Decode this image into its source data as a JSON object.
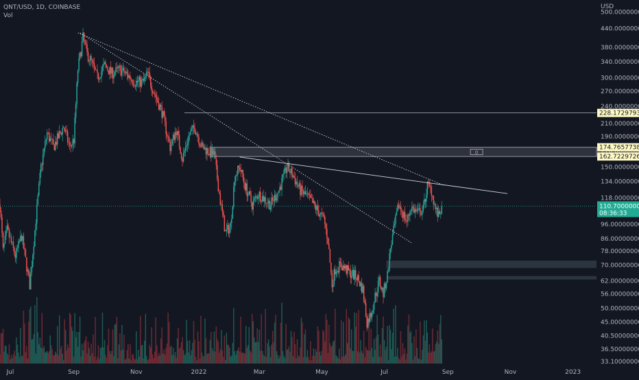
{
  "header": {
    "symbol_line": "QNT/USD, 1D, COINBASE",
    "volume_label": "Vol",
    "unit": "USD"
  },
  "chart_data": {
    "type": "candlestick",
    "symbol": "QNT/USD",
    "interval": "1D",
    "exchange": "COINBASE",
    "y_scale": "log",
    "ylim": [
      32.6,
      520
    ],
    "y_ticks": [
      "500.00000000",
      "440.00000000",
      "380.00000000",
      "340.00000000",
      "300.00000000",
      "270.00000000",
      "240.00000000",
      "210.00000000",
      "190.00000000",
      "170.00000000",
      "150.00000000",
      "134.00000000",
      "118.00000000",
      "106.00000000",
      "96.00000000",
      "86.00000000",
      "78.00000000",
      "70.00000000",
      "62.00000000",
      "56.00000000",
      "50.00000000",
      "45.00000000",
      "40.50000000",
      "36.50000000",
      "33.10000000"
    ],
    "x_ticks": [
      "Jul",
      "Sep",
      "Nov",
      "2022",
      "Mar",
      "May",
      "Jul",
      "Sep",
      "Nov",
      "2023"
    ],
    "x_tick_dates": [
      "2021-07-01",
      "2021-09-01",
      "2021-11-01",
      "2022-01-01",
      "2022-03-01",
      "2022-05-01",
      "2022-07-01",
      "2022-09-01",
      "2022-11-01",
      "2023-01-01"
    ],
    "x_range": [
      "2021-06-21",
      "2023-01-24"
    ],
    "last_date": "2022-08-26",
    "anchors": [
      {
        "date": "2021-06-21",
        "price": 112
      },
      {
        "date": "2021-06-24",
        "price": 78
      },
      {
        "date": "2021-06-28",
        "price": 92
      },
      {
        "date": "2021-07-06",
        "price": 75
      },
      {
        "date": "2021-07-12",
        "price": 88
      },
      {
        "date": "2021-07-20",
        "price": 60
      },
      {
        "date": "2021-07-26",
        "price": 100
      },
      {
        "date": "2021-07-31",
        "price": 150
      },
      {
        "date": "2021-08-06",
        "price": 195
      },
      {
        "date": "2021-08-12",
        "price": 175
      },
      {
        "date": "2021-08-22",
        "price": 205
      },
      {
        "date": "2021-08-28",
        "price": 175
      },
      {
        "date": "2021-09-01",
        "price": 185
      },
      {
        "date": "2021-09-05",
        "price": 320
      },
      {
        "date": "2021-09-10",
        "price": 410
      },
      {
        "date": "2021-09-14",
        "price": 360
      },
      {
        "date": "2021-09-18",
        "price": 340
      },
      {
        "date": "2021-09-24",
        "price": 300
      },
      {
        "date": "2021-10-01",
        "price": 330
      },
      {
        "date": "2021-10-08",
        "price": 310
      },
      {
        "date": "2021-10-16",
        "price": 320
      },
      {
        "date": "2021-10-24",
        "price": 305
      },
      {
        "date": "2021-10-31",
        "price": 290
      },
      {
        "date": "2021-11-08",
        "price": 290
      },
      {
        "date": "2021-11-12",
        "price": 310
      },
      {
        "date": "2021-11-18",
        "price": 270
      },
      {
        "date": "2021-11-26",
        "price": 230
      },
      {
        "date": "2021-12-04",
        "price": 175
      },
      {
        "date": "2021-12-10",
        "price": 200
      },
      {
        "date": "2021-12-16",
        "price": 160
      },
      {
        "date": "2021-12-22",
        "price": 190
      },
      {
        "date": "2021-12-28",
        "price": 205
      },
      {
        "date": "2022-01-04",
        "price": 175
      },
      {
        "date": "2022-01-10",
        "price": 170
      },
      {
        "date": "2022-01-16",
        "price": 165
      },
      {
        "date": "2022-01-22",
        "price": 115
      },
      {
        "date": "2022-01-27",
        "price": 90
      },
      {
        "date": "2022-02-01",
        "price": 95
      },
      {
        "date": "2022-02-05",
        "price": 140
      },
      {
        "date": "2022-02-10",
        "price": 150
      },
      {
        "date": "2022-02-15",
        "price": 130
      },
      {
        "date": "2022-02-22",
        "price": 112
      },
      {
        "date": "2022-02-28",
        "price": 122
      },
      {
        "date": "2022-03-05",
        "price": 118
      },
      {
        "date": "2022-03-12",
        "price": 112
      },
      {
        "date": "2022-03-20",
        "price": 125
      },
      {
        "date": "2022-03-28",
        "price": 150
      },
      {
        "date": "2022-04-03",
        "price": 140
      },
      {
        "date": "2022-04-10",
        "price": 125
      },
      {
        "date": "2022-04-18",
        "price": 118
      },
      {
        "date": "2022-04-26",
        "price": 108
      },
      {
        "date": "2022-05-03",
        "price": 100
      },
      {
        "date": "2022-05-07",
        "price": 85
      },
      {
        "date": "2022-05-11",
        "price": 60
      },
      {
        "date": "2022-05-14",
        "price": 68
      },
      {
        "date": "2022-05-20",
        "price": 70
      },
      {
        "date": "2022-05-28",
        "price": 66
      },
      {
        "date": "2022-06-04",
        "price": 64
      },
      {
        "date": "2022-06-10",
        "price": 58
      },
      {
        "date": "2022-06-14",
        "price": 45
      },
      {
        "date": "2022-06-18",
        "price": 48
      },
      {
        "date": "2022-06-22",
        "price": 55
      },
      {
        "date": "2022-06-26",
        "price": 62
      },
      {
        "date": "2022-06-30",
        "price": 56
      },
      {
        "date": "2022-07-04",
        "price": 65
      },
      {
        "date": "2022-07-07",
        "price": 80
      },
      {
        "date": "2022-07-11",
        "price": 95
      },
      {
        "date": "2022-07-15",
        "price": 112
      },
      {
        "date": "2022-07-19",
        "price": 105
      },
      {
        "date": "2022-07-23",
        "price": 98
      },
      {
        "date": "2022-07-27",
        "price": 110
      },
      {
        "date": "2022-08-02",
        "price": 105
      },
      {
        "date": "2022-08-08",
        "price": 108
      },
      {
        "date": "2022-08-12",
        "price": 130
      },
      {
        "date": "2022-08-16",
        "price": 125
      },
      {
        "date": "2022-08-20",
        "price": 108
      },
      {
        "date": "2022-08-23",
        "price": 102
      },
      {
        "date": "2022-08-26",
        "price": 110.7
      }
    ],
    "trend_lines": [
      {
        "from": {
          "date": "2021-09-05",
          "price": 425
        },
        "to": {
          "date": "2022-08-28",
          "price": 130
        },
        "style": "dotted"
      },
      {
        "from": {
          "date": "2021-09-07",
          "price": 425
        },
        "to": {
          "date": "2022-07-28",
          "price": 83
        },
        "style": "dotted"
      },
      {
        "from": {
          "date": "2022-02-10",
          "price": 162
        },
        "to": {
          "date": "2022-10-29",
          "price": 122
        },
        "style": "solid"
      }
    ],
    "horizontal_levels": [
      {
        "price": 228.17297936,
        "from": "2021-12-18",
        "label": "228.17297936"
      }
    ],
    "zones": [
      {
        "from": "2022-01-12",
        "to": "2023-01-24",
        "top": 174.76577385,
        "bottom": 162.72297261,
        "labels": [
          "174.76577385",
          "162.72297261"
        ],
        "marker": "0"
      },
      {
        "from": "2022-07-03",
        "to": "2023-01-24",
        "top": 72.5,
        "bottom": 68.5
      },
      {
        "from": "2022-07-03",
        "to": "2023-01-24",
        "top": 64.3,
        "bottom": 62.6
      }
    ],
    "last_price": {
      "label": "110.70000000",
      "countdown": "08:36:33",
      "value": 110.7
    },
    "colors": {
      "background": "#131722",
      "up": "#26a69a",
      "down": "#ef5350",
      "up_volume": "#1e5953",
      "down_volume": "#6b2a33",
      "axis_text": "#b2b5be",
      "line": "#d1d4dc",
      "price_tag": "#22ab94",
      "level_tag": "#fff9c4"
    }
  }
}
